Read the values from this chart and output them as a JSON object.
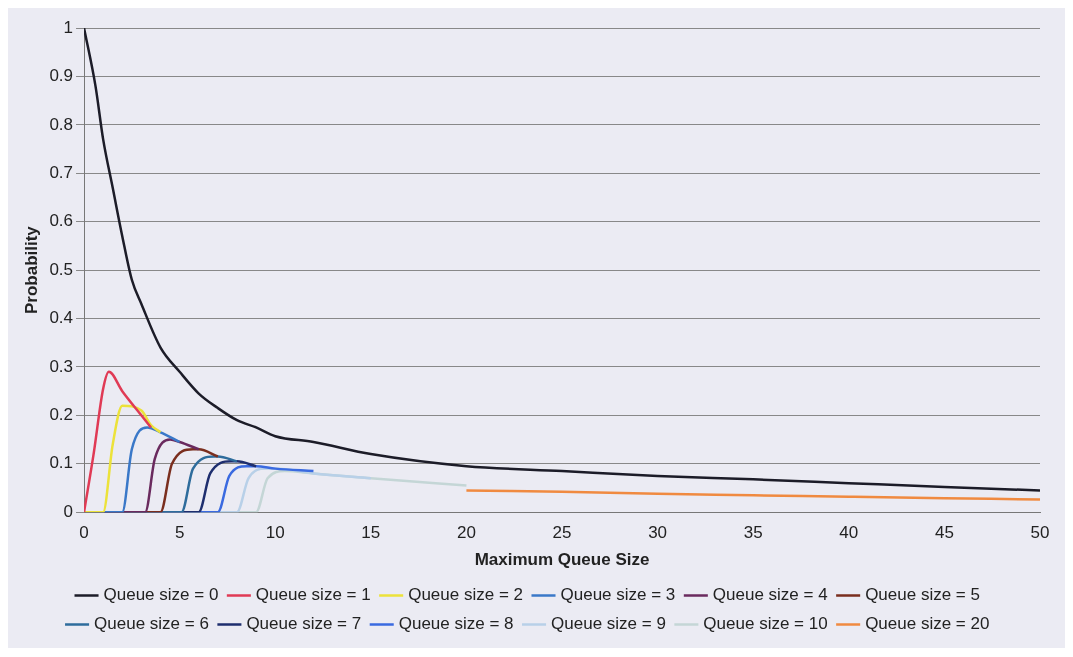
{
  "chart_data": {
    "type": "line",
    "xlabel": "Maximum Queue Size",
    "ylabel": "Probability",
    "xlim": [
      0,
      50
    ],
    "xticks": [
      0,
      5,
      10,
      15,
      20,
      25,
      30,
      35,
      40,
      45,
      50
    ],
    "ylim": [
      0,
      1
    ],
    "yticks": [
      0,
      0.1,
      0.2,
      0.3,
      0.4,
      0.5,
      0.6,
      0.7,
      0.8,
      0.9,
      1
    ],
    "grid": "y",
    "legend": "bottom",
    "marker": "none",
    "line_style": "solid",
    "series": [
      {
        "name": "Queue size = 0",
        "color": "#1c1c28",
        "x": [
          0,
          0.6,
          1,
          1.5,
          2,
          2.5,
          3,
          4,
          5,
          6,
          7,
          8,
          9,
          10,
          12,
          15,
          20,
          25,
          30,
          35,
          40,
          45,
          50
        ],
        "values": [
          1,
          0.88,
          0.77,
          0.67,
          0.57,
          0.48,
          0.43,
          0.34,
          0.29,
          0.245,
          0.215,
          0.19,
          0.175,
          0.157,
          0.145,
          0.12,
          0.095,
          0.085,
          0.075,
          0.068,
          0.06,
          0.052,
          0.045
        ]
      },
      {
        "name": "Queue size = 1",
        "color": "#e03a55",
        "x": [
          0,
          0.5,
          1,
          1.3,
          2,
          3,
          3.5
        ],
        "values": [
          0,
          0.12,
          0.255,
          0.29,
          0.25,
          0.2,
          0.175
        ]
      },
      {
        "name": "Queue size = 2",
        "color": "#ece23a",
        "x": [
          0,
          1,
          1.5,
          2,
          3,
          3.5,
          4
        ],
        "values": [
          0,
          0,
          0.14,
          0.22,
          0.21,
          0.18,
          0.165
        ]
      },
      {
        "name": "Queue size = 3",
        "color": "#3a78c8",
        "x": [
          0,
          2,
          2.5,
          3.3,
          4,
          5
        ],
        "values": [
          0,
          0,
          0.13,
          0.175,
          0.165,
          0.145
        ]
      },
      {
        "name": "Queue size = 4",
        "color": "#6a2a5e",
        "x": [
          0,
          3.2,
          3.7,
          4.5,
          5,
          6
        ],
        "values": [
          0,
          0,
          0.11,
          0.15,
          0.145,
          0.13
        ]
      },
      {
        "name": "Queue size = 5",
        "color": "#7a2e1e",
        "x": [
          0,
          4,
          4.6,
          5.7,
          6,
          7
        ],
        "values": [
          0,
          0,
          0.1,
          0.13,
          0.13,
          0.115
        ]
      },
      {
        "name": "Queue size = 6",
        "color": "#2e6c9c",
        "x": [
          0,
          5.1,
          5.7,
          6.8,
          7,
          8
        ],
        "values": [
          0,
          0,
          0.09,
          0.115,
          0.115,
          0.105
        ]
      },
      {
        "name": "Queue size = 7",
        "color": "#1e2e6e",
        "x": [
          0,
          6,
          6.6,
          7.7,
          8,
          9
        ],
        "values": [
          0,
          0,
          0.08,
          0.105,
          0.105,
          0.095
        ]
      },
      {
        "name": "Queue size = 8",
        "color": "#3a6ae0",
        "x": [
          0,
          7,
          7.6,
          8.5,
          9,
          10,
          12
        ],
        "values": [
          0,
          0,
          0.075,
          0.095,
          0.095,
          0.09,
          0.085
        ]
      },
      {
        "name": "Queue size = 9",
        "color": "#b8d0e8",
        "x": [
          0,
          8,
          8.6,
          9.5,
          10,
          12,
          15
        ],
        "values": [
          0,
          0,
          0.07,
          0.09,
          0.09,
          0.08,
          0.07
        ]
      },
      {
        "name": "Queue size = 10",
        "color": "#c4d6d6",
        "x": [
          0,
          9,
          9.6,
          10.5,
          12,
          15,
          20
        ],
        "values": [
          0,
          0,
          0.07,
          0.085,
          0.08,
          0.07,
          0.055
        ]
      },
      {
        "name": "Queue size = 20",
        "color": "#f08a40",
        "x": [
          20,
          25,
          30,
          35,
          40,
          45,
          50
        ],
        "values": [
          0.045,
          0.042,
          0.038,
          0.035,
          0.032,
          0.029,
          0.026
        ]
      }
    ]
  }
}
